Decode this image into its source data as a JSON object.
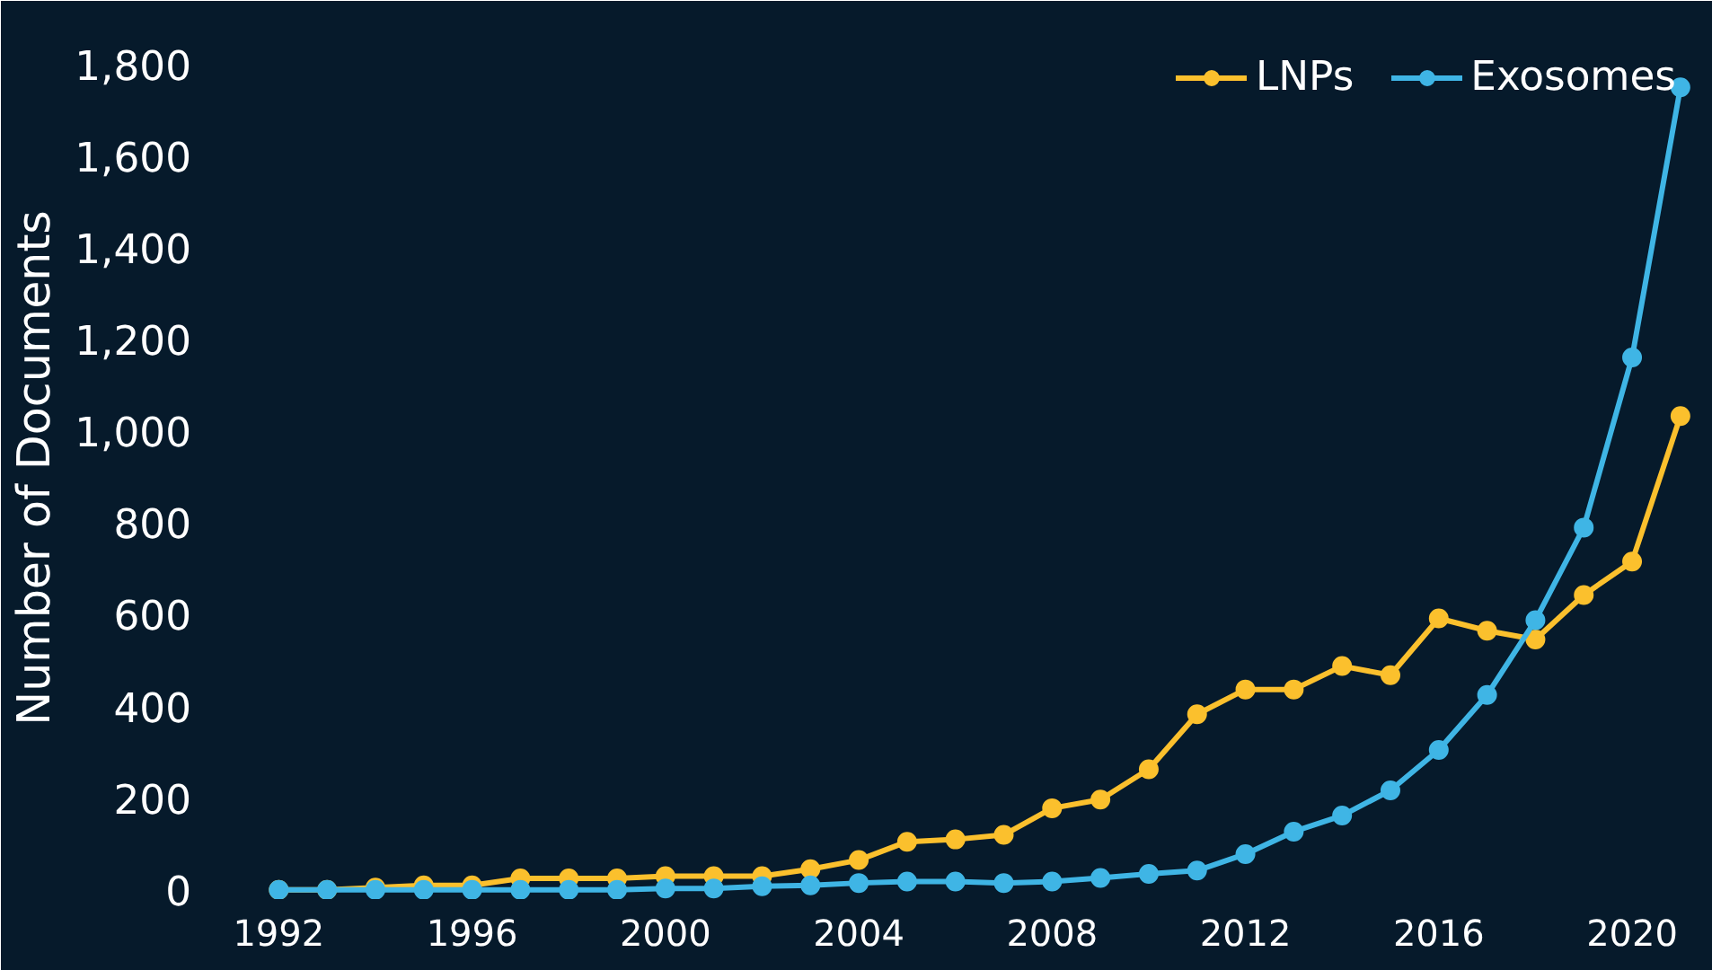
{
  "chart_data": {
    "type": "line",
    "ylabel": "Number of Documents",
    "x": [
      1992,
      1993,
      1994,
      1995,
      1996,
      1997,
      1998,
      1999,
      2000,
      2001,
      2002,
      2003,
      2004,
      2005,
      2006,
      2007,
      2008,
      2009,
      2010,
      2011,
      2012,
      2013,
      2014,
      2015,
      2016,
      2017,
      2018,
      2019,
      2020,
      2021
    ],
    "series": [
      {
        "name": "LNPs",
        "color": "#fbc02d",
        "values": [
          0,
          0,
          5,
          10,
          10,
          25,
          25,
          25,
          30,
          30,
          30,
          45,
          65,
          105,
          110,
          120,
          178,
          197,
          263,
          383,
          437,
          437,
          488,
          468,
          592,
          565,
          546,
          643,
          716,
          1033
        ]
      },
      {
        "name": "Exosomes",
        "color": "#3fb5e5",
        "values": [
          0,
          0,
          0,
          0,
          0,
          0,
          0,
          0,
          3,
          3,
          8,
          10,
          15,
          18,
          18,
          15,
          18,
          26,
          35,
          42,
          78,
          127,
          162,
          217,
          305,
          425,
          588,
          790,
          1161,
          1750
        ]
      }
    ],
    "xlim": [
      1990.6,
      2021.3
    ],
    "xticks": [
      1992,
      1996,
      2000,
      2004,
      2008,
      2012,
      2016,
      2020
    ],
    "ylim": [
      -20,
      1860
    ],
    "yticks": [
      {
        "value": 0,
        "label": "0"
      },
      {
        "value": 200,
        "label": "200"
      },
      {
        "value": 400,
        "label": "400"
      },
      {
        "value": 600,
        "label": "600"
      },
      {
        "value": 800,
        "label": "800"
      },
      {
        "value": 1000,
        "label": "1,000"
      },
      {
        "value": 1200,
        "label": "1,200"
      },
      {
        "value": 1400,
        "label": "1,400"
      },
      {
        "value": 1600,
        "label": "1,600"
      },
      {
        "value": 1800,
        "label": "1,800"
      }
    ],
    "grid": false,
    "legend": "top right",
    "marker": "circle",
    "line_style": "solid"
  }
}
